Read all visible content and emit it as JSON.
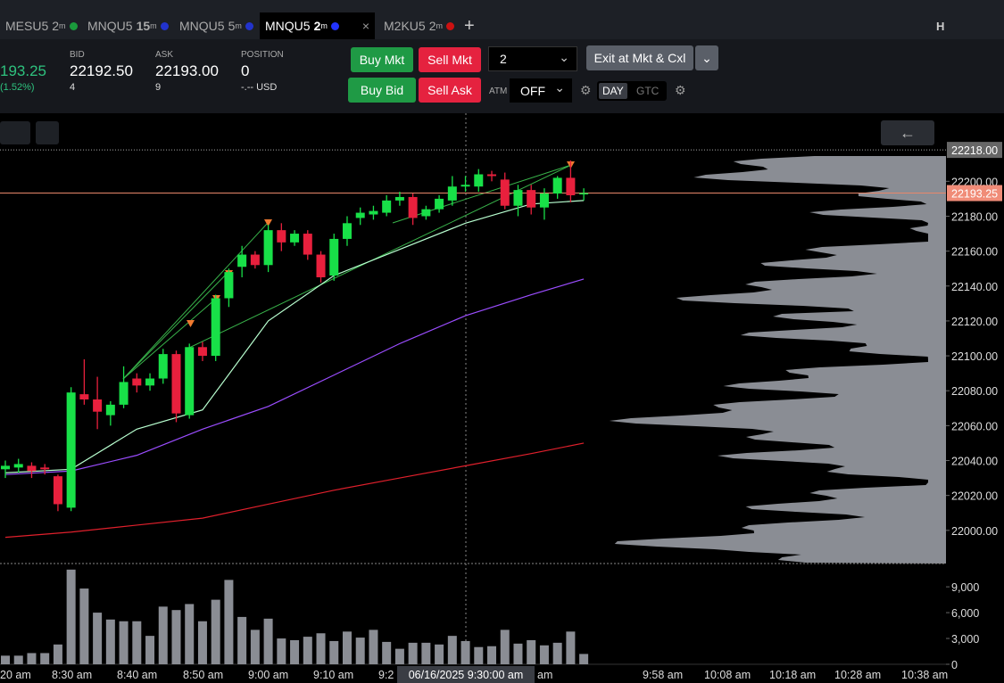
{
  "tabs": [
    {
      "symbol": "MESU5",
      "interval": "2",
      "unit": "m"
    },
    {
      "symbol": "MNQU5",
      "interval": "15",
      "unit": "m"
    },
    {
      "symbol": "MNQU5",
      "interval": "5",
      "unit": "m"
    },
    {
      "symbol": "MNQU5",
      "interval": "2",
      "unit": "m"
    },
    {
      "symbol": "M2KU5",
      "interval": "2",
      "unit": "m"
    }
  ],
  "header_right": "H",
  "quote": {
    "last": "193.25",
    "change": "(1.52%)",
    "bid_label": "BID",
    "bid": "22192.50",
    "bid_size": "4",
    "ask_label": "ASK",
    "ask": "22193.00",
    "ask_size": "9",
    "position_label": "POSITION",
    "position": "0",
    "pnl": "-.-- USD"
  },
  "order": {
    "buy_mkt": "Buy Mkt",
    "sell_mkt": "Sell Mkt",
    "quantity": "2",
    "exit": "Exit at Mkt & Cxl",
    "buy_bid": "Buy Bid",
    "sell_ask": "Sell Ask",
    "atm_label": "ATM",
    "atm": "OFF",
    "day": "DAY",
    "gtc": "GTC"
  },
  "chart_data": {
    "type": "candlestick",
    "open": [
      22035,
      22036,
      22037,
      22036,
      22031,
      22013,
      22078,
      22075,
      22066,
      22072,
      22087,
      22083,
      22087,
      22101,
      22066,
      22105,
      22100,
      22133,
      22151,
      22158,
      22152,
      22172,
      22165,
      22170,
      22158,
      22146,
      22167,
      22179,
      22181,
      22182,
      22189,
      22191,
      22180,
      22184,
      22189,
      22197,
      22197,
      22204,
      22201,
      22186,
      22195,
      22185,
      22193,
      22202,
      22193
    ],
    "high": [
      22040,
      22041,
      22039,
      22038,
      22032,
      22082,
      22098,
      22088,
      22074,
      22094,
      22090,
      22090,
      22104,
      22103,
      22107,
      22108,
      22135,
      22150,
      22163,
      22160,
      22175,
      22176,
      22172,
      22172,
      22160,
      22170,
      22180,
      22185,
      22186,
      22192,
      22194,
      22193,
      22186,
      22192,
      22203,
      22203,
      22207,
      22206,
      22205,
      22198,
      22198,
      22196,
      22203,
      22212,
      22196
    ],
    "low": [
      22030,
      22033,
      22030,
      22032,
      22011,
      22011,
      22072,
      22058,
      22060,
      22070,
      22079,
      22080,
      22084,
      22062,
      22064,
      22097,
      22097,
      22128,
      22145,
      22150,
      22148,
      22160,
      22163,
      22155,
      22142,
      22143,
      22163,
      22175,
      22178,
      22180,
      22186,
      22175,
      22178,
      22182,
      22186,
      22194,
      22194,
      22200,
      22184,
      22180,
      22181,
      22178,
      22190,
      22188,
      22189
    ],
    "close": [
      22037,
      22038,
      22034,
      22035,
      22015,
      22079,
      22075,
      22068,
      22072,
      22085,
      22083,
      22087,
      22101,
      22067,
      22105,
      22100,
      22133,
      22148,
      22158,
      22152,
      22172,
      22165,
      22170,
      22158,
      22145,
      22167,
      22176,
      22182,
      22183,
      22189,
      22191,
      22179,
      22184,
      22190,
      22197,
      22198,
      22204,
      22203,
      22186,
      22195,
      22185,
      22193,
      22202,
      22192,
      22193.25
    ],
    "volume": [
      1000,
      1000,
      1300,
      1300,
      2300,
      11000,
      8800,
      6000,
      5200,
      5000,
      5000,
      3300,
      6700,
      6300,
      7000,
      5000,
      7500,
      9800,
      5500,
      4000,
      5300,
      3000,
      2800,
      3200,
      3600,
      2700,
      3800,
      3100,
      4000,
      2600,
      1800,
      2500,
      2500,
      2300,
      3300,
      2700,
      2000,
      2100,
      4000,
      2400,
      2800,
      2200,
      2500,
      3800,
      1200
    ],
    "ma_index": [
      0,
      5,
      10,
      15,
      20,
      25,
      30,
      35,
      40,
      44
    ],
    "moving_averages": [
      {
        "color": "#b8ffd0",
        "values": [
          22033,
          22035,
          22058,
          22069,
          22120,
          22146,
          22161,
          22176,
          22187,
          22189
        ]
      },
      {
        "color": "#9b4dff",
        "values": [
          22032,
          22034,
          22043,
          22058,
          22071,
          22089,
          22107,
          22123,
          22135,
          22144
        ]
      },
      {
        "color": "#e0202c",
        "values": [
          21996,
          21999,
          22003,
          22007,
          22015,
          22023,
          22030,
          22037,
          22044,
          22050
        ]
      }
    ],
    "ylim": [
      21981,
      22239
    ],
    "yticks": [
      {
        "value": 22000,
        "label": "22000.00"
      },
      {
        "value": 22020,
        "label": "22020.00"
      },
      {
        "value": 22040,
        "label": "22040.00"
      },
      {
        "value": 22060,
        "label": "22060.00"
      },
      {
        "value": 22080,
        "label": "22080.00"
      },
      {
        "value": 22100,
        "label": "22100.00"
      },
      {
        "value": 22120,
        "label": "22120.00"
      },
      {
        "value": 22140,
        "label": "22140.00"
      },
      {
        "value": 22160,
        "label": "22160.00"
      },
      {
        "value": 22180,
        "label": "22180.00"
      },
      {
        "value": 22200,
        "label": "22200.00"
      }
    ],
    "last_price": {
      "value": 22193.25,
      "label": "22193.25"
    },
    "high_line": {
      "value": 22218,
      "label": "22218.00"
    },
    "volume_ylim": [
      0,
      11500
    ],
    "volume_ticks": [
      0,
      {
        "value": 3000,
        "label": "3,000"
      },
      {
        "value": 6000,
        "label": "6,000"
      },
      {
        "value": 9000,
        "label": "9,000"
      }
    ],
    "xlabels": [
      "20 am",
      "8:30 am",
      "8:40 am",
      "8:50 am",
      "9:00 am",
      "9:10 am",
      "9:2",
      "am",
      "9:58 am",
      "10:08 am",
      "10:18 am",
      "10:28 am",
      "10:38 am"
    ],
    "crosshair_label": "06/16/2025 9:30:00 am"
  }
}
